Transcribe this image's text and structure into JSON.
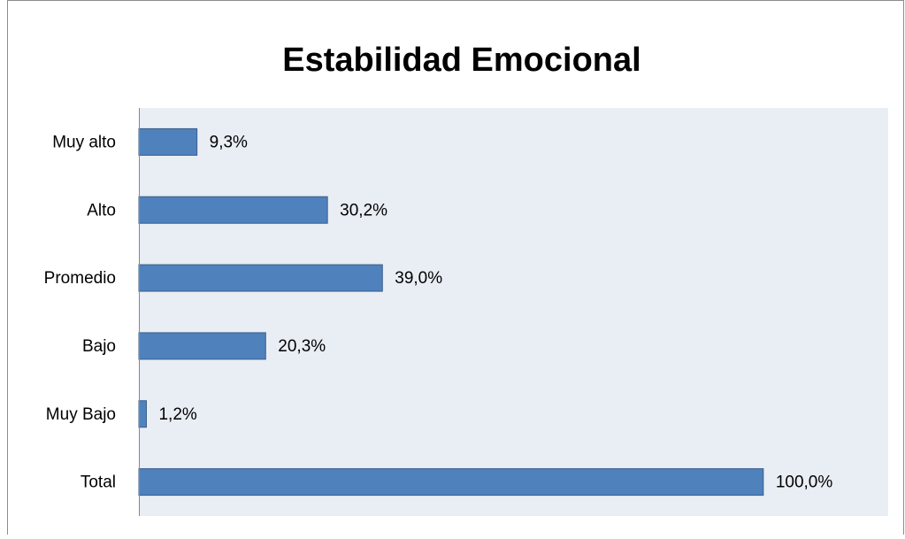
{
  "chart_data": {
    "type": "bar",
    "orientation": "horizontal",
    "title": "Estabilidad Emocional",
    "categories": [
      "Muy alto",
      "Alto",
      "Promedio",
      "Bajo",
      "Muy Bajo",
      "Total"
    ],
    "values": [
      9.3,
      30.2,
      39.0,
      20.3,
      1.2,
      100.0
    ],
    "value_labels": [
      "9,3%",
      "30,2%",
      "39,0%",
      "20,3%",
      "1,2%",
      "100,0%"
    ],
    "color": "#4f81bd",
    "xlim": [
      0,
      120
    ],
    "grid": false
  }
}
